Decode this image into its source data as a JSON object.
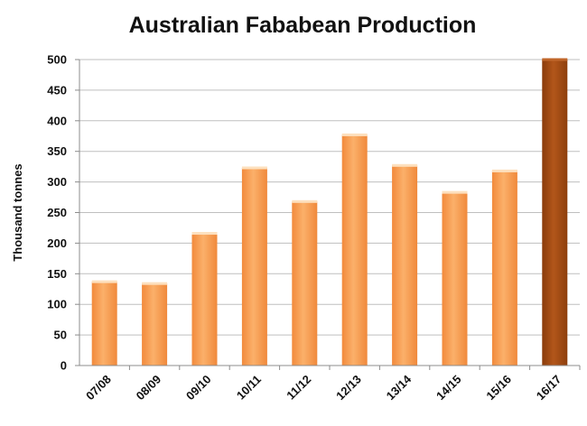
{
  "chart_data": {
    "type": "bar",
    "title": "Australian Fababean Production",
    "xlabel": "",
    "ylabel": "Thousand tonnes",
    "categories": [
      "07/08",
      "08/09",
      "09/10",
      "10/11",
      "11/12",
      "12/13",
      "13/14",
      "14/15",
      "15/16",
      "16/17"
    ],
    "values": [
      137,
      134,
      216,
      323,
      268,
      377,
      327,
      283,
      318,
      500
    ],
    "ylim": [
      0,
      500
    ],
    "yticks": [
      0,
      50,
      100,
      150,
      200,
      250,
      300,
      350,
      400,
      450,
      500
    ],
    "grid": true,
    "legend": "none",
    "colors": {
      "bar": "#f9a55b",
      "bar_highlight": "#a34c10",
      "bar_top": "#fde0be",
      "gridline": "#bfbfbf",
      "axis": "#8c8c8c"
    },
    "highlight_index": 9
  }
}
